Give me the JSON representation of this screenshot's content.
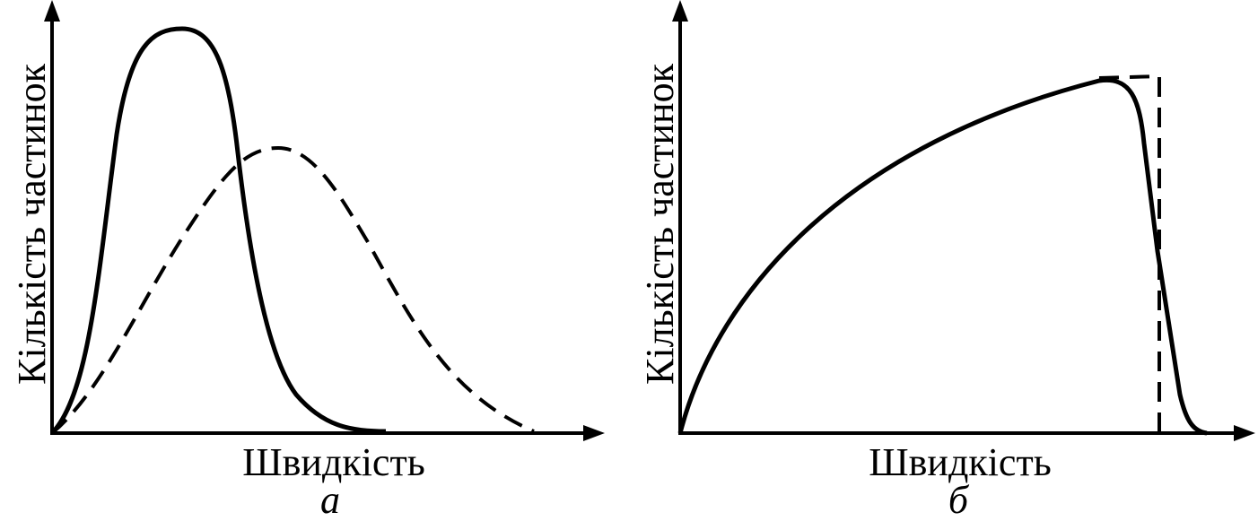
{
  "panels": [
    {
      "label": "а",
      "x_label": "Швидкість",
      "y_label": "Кількість частинок"
    },
    {
      "label": "б",
      "x_label": "Швидкість",
      "y_label": "Кількість частинок"
    }
  ]
}
